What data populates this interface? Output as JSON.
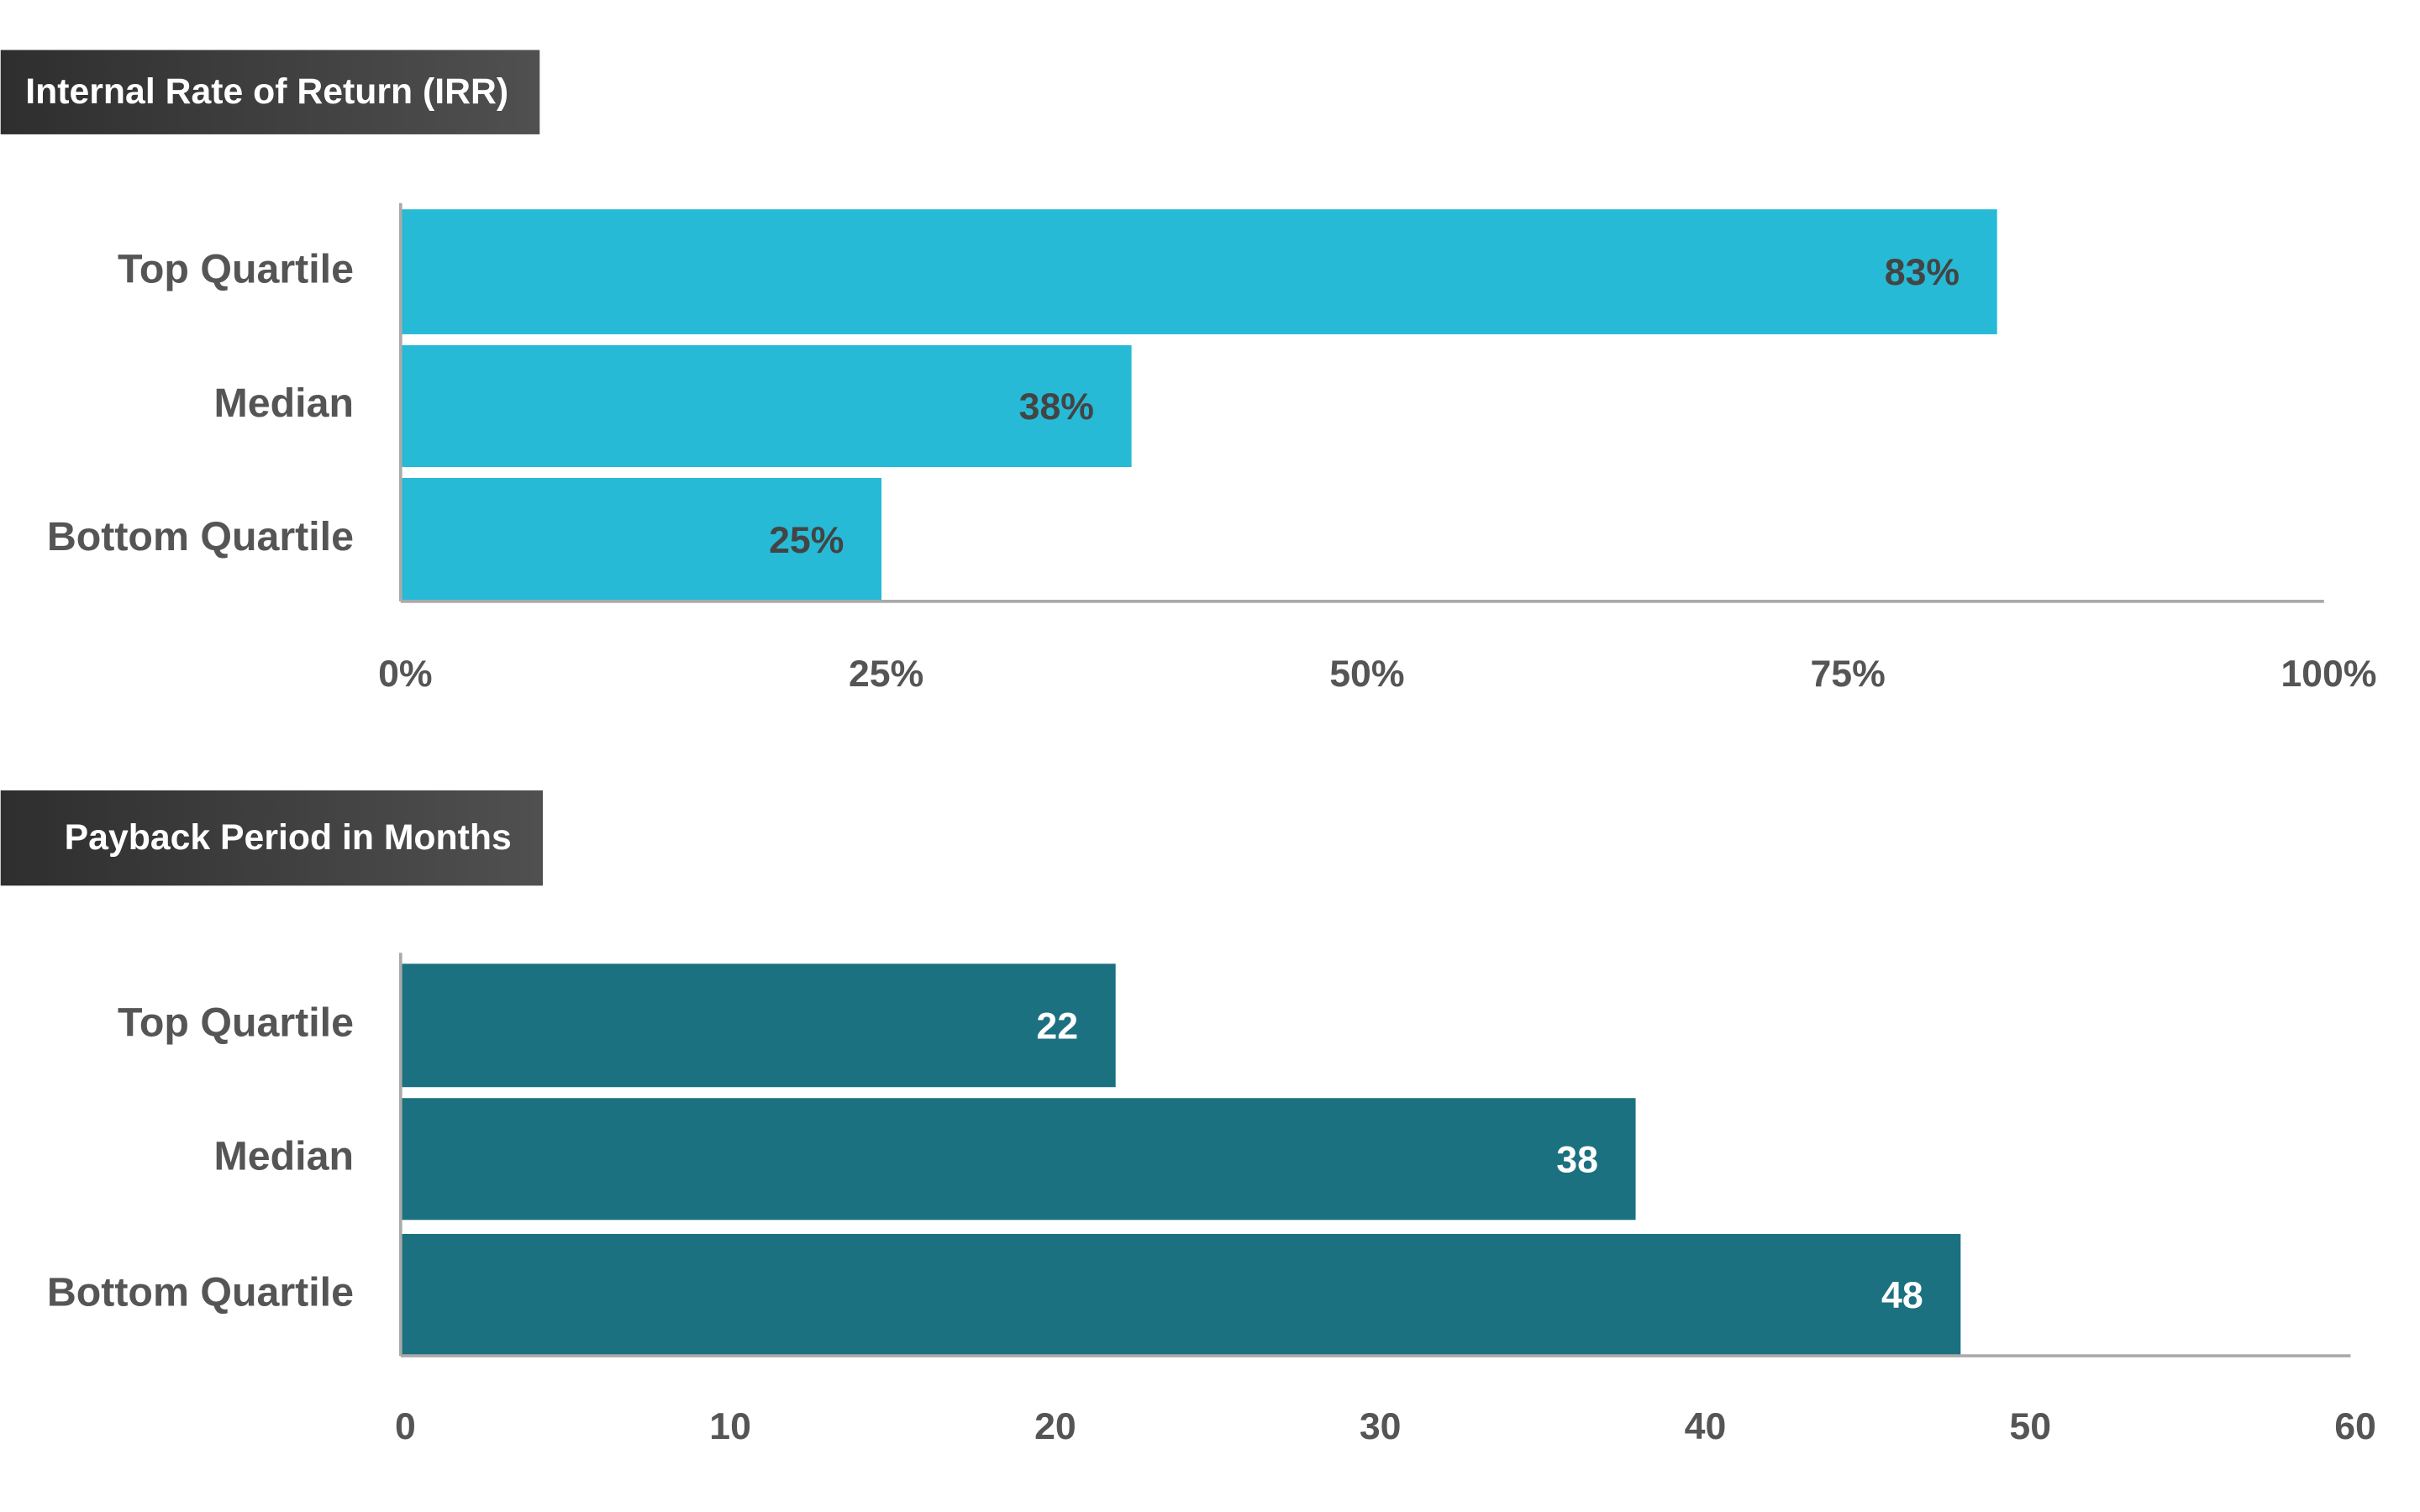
{
  "chart_data": [
    {
      "type": "hbar",
      "title": "Internal Rate of Return (IRR)",
      "categories": [
        "Top Quartile",
        "Median",
        "Bottom Quartile"
      ],
      "values": [
        83,
        38,
        25
      ],
      "value_labels": [
        "83%",
        "38%",
        "25%"
      ],
      "color": "#26bad6",
      "value_label_color": "#444444",
      "xlim": [
        0,
        100
      ],
      "xticks": [
        {
          "value": 0,
          "label": "0%"
        },
        {
          "value": 25,
          "label": "25%"
        },
        {
          "value": 50,
          "label": "50%"
        },
        {
          "value": 75,
          "label": "75%"
        },
        {
          "value": 100,
          "label": "100%"
        }
      ]
    },
    {
      "type": "hbar",
      "title": "Payback Period in Months",
      "categories": [
        "Top Quartile",
        "Median",
        "Bottom Quartile"
      ],
      "values": [
        22,
        38,
        48
      ],
      "color": "#1b7180",
      "value_label_color": "#ffffff",
      "xlim": [
        0,
        60
      ],
      "xticks": [
        0,
        10,
        20,
        30,
        40,
        50,
        60
      ]
    }
  ]
}
